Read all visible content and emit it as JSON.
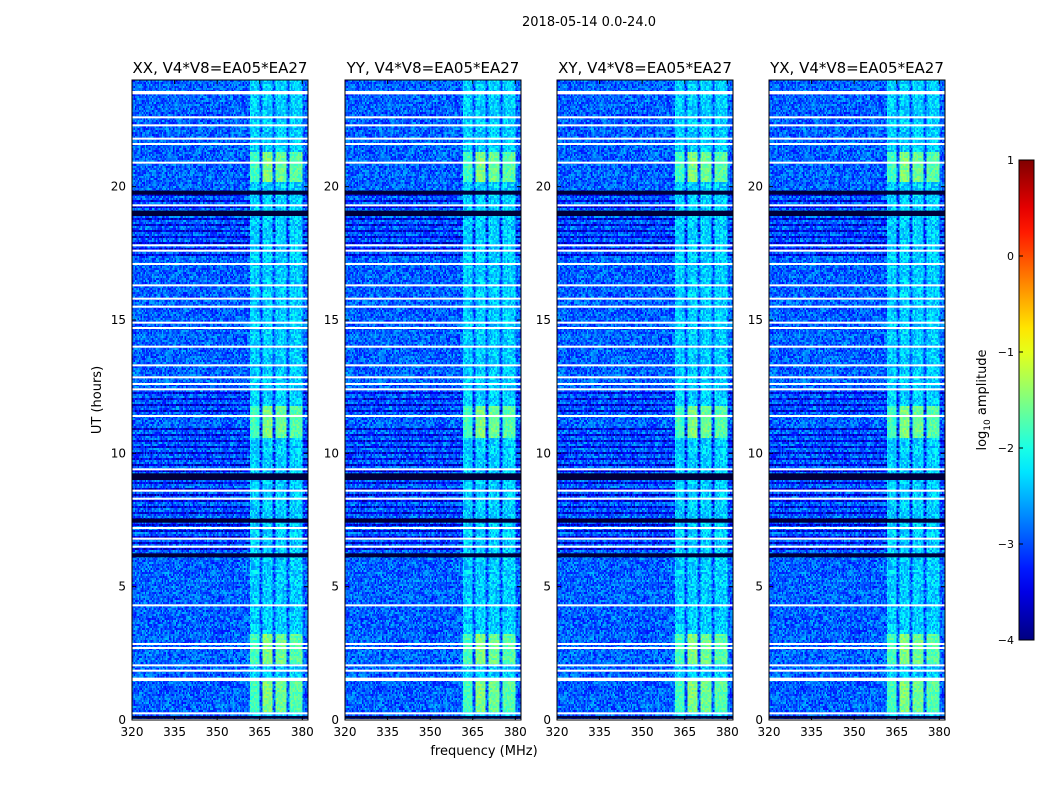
{
  "figure": {
    "suptitle": "2018-05-14 0.0-24.0",
    "xlabel": "frequency (MHz)",
    "ylabel": "UT (hours)"
  },
  "chart_data": {
    "type": "heatmap",
    "x_range": [
      320,
      382
    ],
    "y_range": [
      0,
      24
    ],
    "xticks": [
      320,
      335,
      350,
      365,
      380
    ],
    "xtick_labels": [
      "320",
      "335",
      "350",
      "365",
      "380"
    ],
    "yticks": [
      0,
      5,
      10,
      15,
      20
    ],
    "ytick_labels": [
      "0",
      "5",
      "10",
      "15",
      "20"
    ],
    "grid": false,
    "panels": [
      {
        "title": "XX, V4*V8=EA05*EA27"
      },
      {
        "title": "YY, V4*V8=EA05*EA27"
      },
      {
        "title": "XY, V4*V8=EA05*EA27"
      },
      {
        "title": "YX, V4*V8=EA05*EA27"
      }
    ],
    "colorbar": {
      "label": "log10 amplitude",
      "label_base": "log",
      "label_sub": "10",
      "label_rest": " amplitude",
      "range": [
        -4,
        1
      ],
      "ticks": [
        1,
        0,
        -1,
        -2,
        -3,
        -4
      ],
      "tick_labels": [
        "1",
        "0",
        "−1",
        "−2",
        "−3",
        "−4"
      ],
      "colormap": "jet"
    },
    "background_level": -2.9,
    "signal_band_mhz": [
      361,
      381
    ],
    "signal_subbands": [
      {
        "range": [
          361.5,
          365
        ],
        "level": -1.8
      },
      {
        "range": [
          365.8,
          369.5
        ],
        "level": -1.5
      },
      {
        "range": [
          370.5,
          374.5
        ],
        "level": -1.6
      },
      {
        "range": [
          375.3,
          380
        ],
        "level": -1.7
      }
    ],
    "bright_intervals_hours": [
      [
        0.3,
        1.6
      ],
      [
        2.1,
        3.2
      ],
      [
        10.6,
        11.8
      ],
      [
        20.2,
        21.3
      ]
    ],
    "flagged_gaps_hours": [
      0.0,
      0.25,
      1.5,
      1.55,
      1.85,
      2.05,
      2.7,
      2.85,
      4.3,
      6.5,
      6.8,
      7.2,
      8.3,
      8.6,
      9.4,
      11.4,
      12.4,
      12.6,
      12.85,
      13.3,
      14.0,
      14.7,
      14.9,
      15.5,
      15.8,
      16.3,
      17.1,
      17.6,
      17.8,
      19.3,
      20.9,
      21.6,
      21.8,
      22.3,
      22.6,
      23.5,
      23.55
    ],
    "dark_bands_hours": [
      [
        0.05,
        0.15
      ],
      [
        6.1,
        6.25
      ],
      [
        7.4,
        7.55
      ],
      [
        9.0,
        9.25
      ],
      [
        18.9,
        19.1
      ],
      [
        19.7,
        19.85
      ]
    ],
    "striped_regions_hours": [
      [
        6.2,
        11.0
      ],
      [
        11.5,
        12.3
      ],
      [
        17.3,
        19.9
      ]
    ]
  }
}
